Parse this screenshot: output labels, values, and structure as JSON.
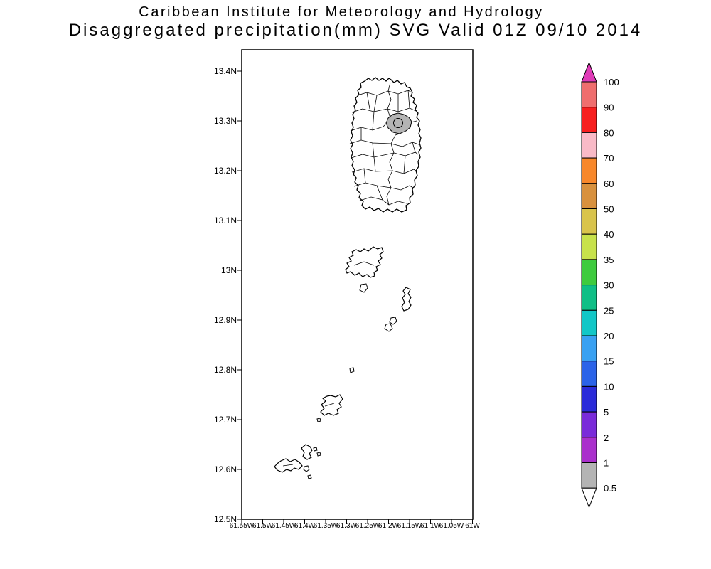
{
  "header": {
    "title_line1": "Caribbean Institute for Meteorology and Hydrology",
    "title_line2": "Disaggregated precipitation(mm) SVG Valid 01Z 09/10 2014"
  },
  "map": {
    "y_tick_labels": [
      "13.4N",
      "13.3N",
      "13.2N",
      "13.1N",
      "13N",
      "12.9N",
      "12.8N",
      "12.7N",
      "12.6N",
      "12.5N"
    ],
    "x_tick_labels": [
      "61.55W",
      "61.5W",
      "61.45W",
      "61.4W",
      "61.35W",
      "61.3W",
      "61.25W",
      "61.2W",
      "61.15W",
      "61.1W",
      "61.05W",
      "61W"
    ],
    "shaded_region": {
      "description": "Shaded watershed on north-central St. Vincent",
      "value_range_mm": "0.5-1",
      "color": "#b4b4b4"
    }
  },
  "legend": {
    "boundary_labels": [
      "100",
      "90",
      "80",
      "70",
      "60",
      "50",
      "40",
      "35",
      "30",
      "25",
      "20",
      "15",
      "10",
      "5",
      "2",
      "1",
      "0.5"
    ],
    "top_arrow_color": "#df3bb7",
    "box_colors": [
      "#ef6e6e",
      "#f71f1f",
      "#f9bac7",
      "#f8882b",
      "#d8913e",
      "#d9c44c",
      "#c8e24b",
      "#3ecb3e",
      "#0fbf86",
      "#12c7c7",
      "#39a1f2",
      "#2b63e8",
      "#2b2bd9",
      "#7a2bd9",
      "#aa30cc",
      "#b4b4b4"
    ],
    "bottom_arrow_color": "#ffffff",
    "line_color": "#000000"
  }
}
